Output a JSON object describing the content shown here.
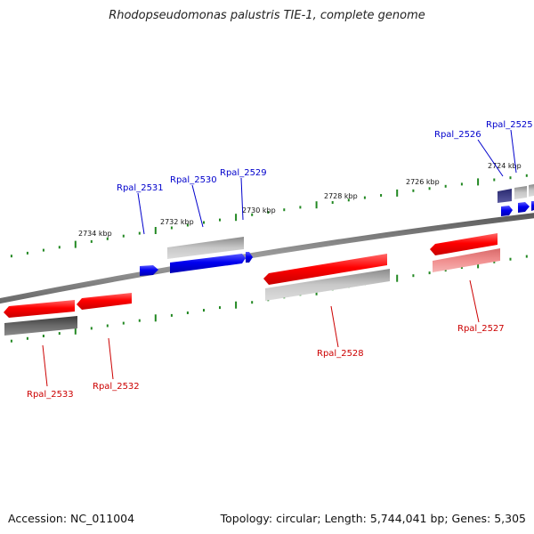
{
  "title": "Rhodopseudomonas palustris TIE-1, complete genome",
  "footer": {
    "accession": "Accession: NC_011004",
    "summary": "Topology: circular; Length: 5,744,041 bp; Genes: 5,305"
  },
  "scale_labels": [
    "2734 kbp",
    "2732 kbp",
    "2730 kbp",
    "2728 kbp",
    "2726 kbp",
    "2724 kbp"
  ],
  "genes": [
    {
      "name": "Rpal_2525",
      "label_color": "#0000cc"
    },
    {
      "name": "Rpal_2526",
      "label_color": "#0000cc"
    },
    {
      "name": "Rpal_2527",
      "label_color": "#cc0000"
    },
    {
      "name": "Rpal_2528",
      "label_color": "#cc0000"
    },
    {
      "name": "Rpal_2529",
      "label_color": "#0000cc"
    },
    {
      "name": "Rpal_2530",
      "label_color": "#0000cc"
    },
    {
      "name": "Rpal_2531",
      "label_color": "#0000cc"
    },
    {
      "name": "Rpal_2532",
      "label_color": "#cc0000"
    },
    {
      "name": "Rpal_2533",
      "label_color": "#cc0000"
    }
  ],
  "colors": {
    "forward_strand": "#0000ee",
    "reverse_strand": "#ee0000",
    "backbone": "#808080",
    "tick": "#228822"
  }
}
